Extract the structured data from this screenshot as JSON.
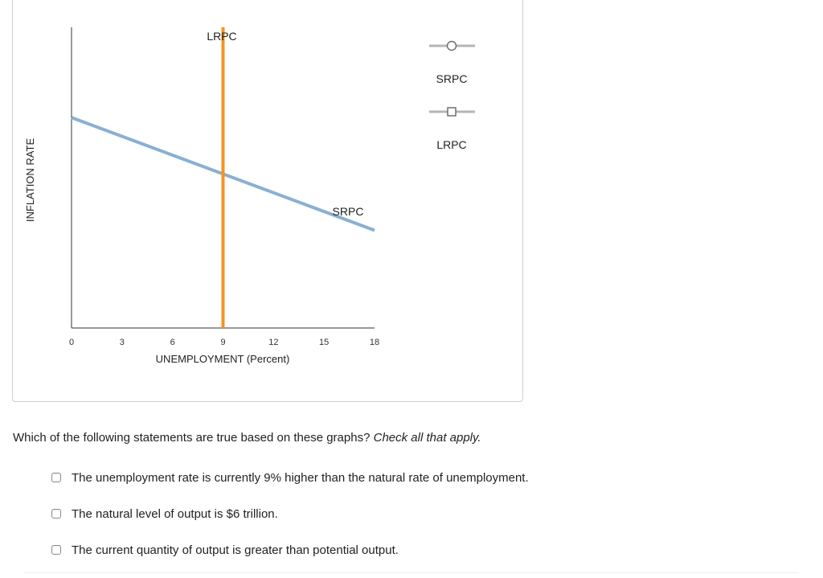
{
  "chart_data": {
    "type": "line",
    "xlabel": "UNEMPLOYMENT (Percent)",
    "ylabel": "INFLATION RATE",
    "x_ticks": [
      "0",
      "3",
      "6",
      "9",
      "12",
      "15",
      "18"
    ],
    "xlim": [
      0,
      18
    ],
    "ylim": [
      0,
      10
    ],
    "series": [
      {
        "name": "SRPC",
        "color": "#8aafd4",
        "x": [
          0,
          18
        ],
        "y": [
          7.0,
          3.25
        ]
      },
      {
        "name": "LRPC",
        "color": "#f6921e",
        "x": [
          9,
          9
        ],
        "y": [
          0,
          10
        ]
      }
    ],
    "line_labels": [
      {
        "text": "LRPC",
        "series": "LRPC"
      },
      {
        "text": "SRPC",
        "series": "SRPC"
      }
    ],
    "legend": {
      "placement": "right",
      "items": [
        {
          "label": "SRPC",
          "marker": "circle"
        },
        {
          "label": "LRPC",
          "marker": "square"
        }
      ]
    }
  },
  "question": {
    "text": "Which of the following statements are true based on these graphs?",
    "instruction": "Check all that apply."
  },
  "options": [
    "The unemployment rate is currently 9% higher than the natural rate of unemployment.",
    "The natural level of output is $6 trillion.",
    "The current quantity of output is greater than potential output."
  ]
}
